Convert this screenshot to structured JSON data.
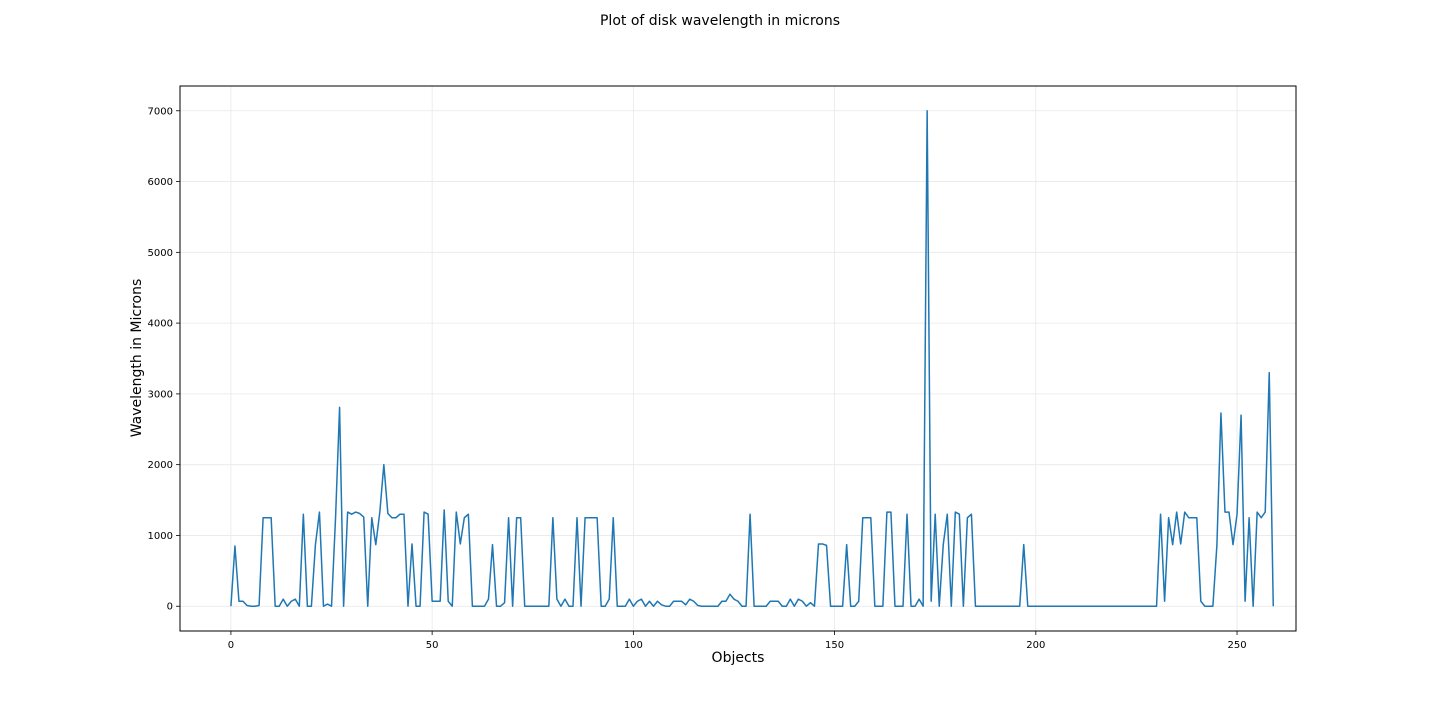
{
  "chart_data": {
    "type": "line",
    "title": "Plot of disk wavelength in microns",
    "xlabel": "Objects",
    "ylabel": "Wavelength in Microns",
    "xlim": [
      -12.65,
      264.65
    ],
    "ylim": [
      -350,
      7350
    ],
    "xticks": [
      0,
      50,
      100,
      150,
      200,
      250
    ],
    "yticks": [
      0,
      1000,
      2000,
      3000,
      4000,
      5000,
      6000,
      7000
    ],
    "grid": true,
    "line_color": "#1f77b4",
    "series": [
      {
        "values": [
          0,
          850,
          70,
          70,
          10,
          0,
          0,
          10,
          1250,
          1250,
          1250,
          0,
          0,
          100,
          0,
          70,
          100,
          0,
          1300,
          0,
          0,
          870,
          1330,
          0,
          30,
          0,
          1250,
          2810,
          0,
          1330,
          1300,
          1330,
          1310,
          1260,
          0,
          1250,
          870,
          1330,
          2000,
          1310,
          1250,
          1250,
          1300,
          1300,
          0,
          880,
          0,
          0,
          1330,
          1300,
          70,
          70,
          70,
          1360,
          70,
          0,
          1330,
          880,
          1250,
          1300,
          0,
          0,
          0,
          0,
          100,
          870,
          0,
          0,
          50,
          1250,
          0,
          1250,
          1250,
          0,
          0,
          0,
          0,
          0,
          0,
          0,
          1250,
          100,
          0,
          100,
          0,
          0,
          1250,
          0,
          1250,
          1250,
          1250,
          1250,
          0,
          0,
          100,
          1250,
          0,
          0,
          0,
          100,
          0,
          70,
          100,
          0,
          70,
          0,
          70,
          20,
          0,
          0,
          70,
          70,
          70,
          20,
          100,
          70,
          10,
          0,
          0,
          0,
          0,
          0,
          70,
          70,
          170,
          100,
          70,
          0,
          0,
          1300,
          0,
          0,
          0,
          0,
          70,
          70,
          70,
          0,
          0,
          100,
          0,
          100,
          70,
          0,
          50,
          0,
          880,
          880,
          860,
          0,
          0,
          0,
          0,
          870,
          0,
          0,
          70,
          1250,
          1250,
          1250,
          0,
          0,
          0,
          1330,
          1330,
          0,
          0,
          0,
          1300,
          0,
          0,
          100,
          0,
          7000,
          70,
          1300,
          0,
          870,
          1300,
          0,
          1330,
          1300,
          0,
          1250,
          1300,
          0,
          0,
          0,
          0,
          0,
          0,
          0,
          0,
          0,
          0,
          0,
          0,
          870,
          0,
          0,
          0,
          0,
          0,
          0,
          0,
          0,
          0,
          0,
          0,
          0,
          0,
          0,
          0,
          0,
          0,
          0,
          0,
          0,
          0,
          0,
          0,
          0,
          0,
          0,
          0,
          0,
          0,
          0,
          0,
          0,
          0,
          1300,
          70,
          1250,
          870,
          1330,
          880,
          1330,
          1250,
          1250,
          1250,
          70,
          0,
          0,
          0,
          870,
          2730,
          1330,
          1330,
          870,
          1300,
          2700,
          70,
          1250,
          0,
          1330,
          1250,
          1330,
          3300,
          0
        ]
      }
    ]
  }
}
